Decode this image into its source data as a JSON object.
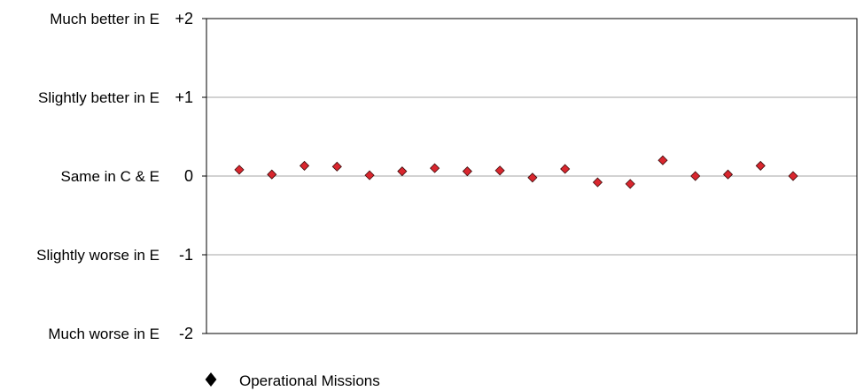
{
  "chart_data": {
    "type": "scatter",
    "title": "",
    "xlabel": "",
    "ylabel": "",
    "ylim": [
      -2,
      2
    ],
    "y_ticks": [
      {
        "value": 2,
        "tick": "+2",
        "label": "Much better in E"
      },
      {
        "value": 1,
        "tick": "+1",
        "label": "Slightly better in E"
      },
      {
        "value": 0,
        "tick": "0",
        "label": "Same in C & E"
      },
      {
        "value": -1,
        "tick": "-1",
        "label": "Slightly worse in E"
      },
      {
        "value": -2,
        "tick": "-2",
        "label": "Much worse in E"
      }
    ],
    "grid": true,
    "legend_position": "bottom-left",
    "series": [
      {
        "name": "Operational Missions",
        "marker": "diamond",
        "color": "#d9262e",
        "x": [
          1,
          2,
          3,
          4,
          5,
          6,
          7,
          8,
          9,
          10,
          11,
          12,
          13,
          14,
          15,
          16,
          17,
          18
        ],
        "values": [
          0.08,
          0.02,
          0.13,
          0.12,
          0.01,
          0.06,
          0.1,
          0.06,
          0.07,
          -0.02,
          0.09,
          -0.08,
          -0.1,
          0.2,
          0.0,
          0.02,
          0.13,
          0.0
        ]
      }
    ]
  }
}
